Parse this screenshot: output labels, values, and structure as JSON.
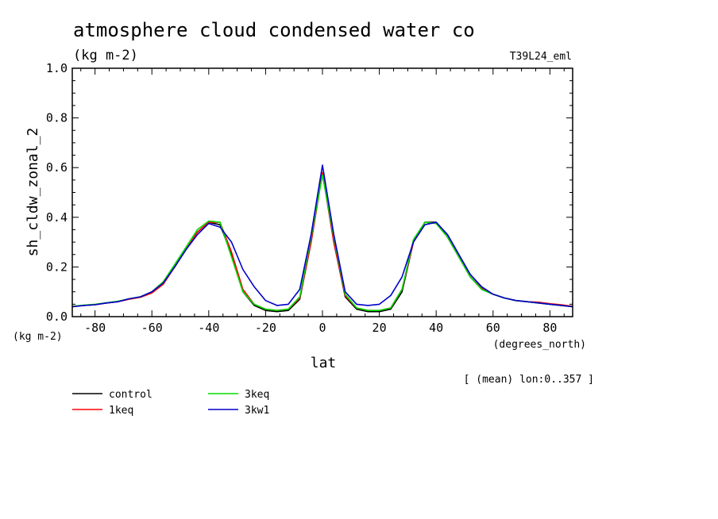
{
  "chart_data": {
    "type": "line",
    "title": "atmosphere cloud condensed water co",
    "units": "(kg m-2)",
    "dataset_label": "T39L24_eml",
    "ylabel": "sh_cldw_zonal_2",
    "y_units": "(kg m-2)",
    "xlabel": "lat",
    "x_units": "(degrees_north)",
    "subset_note": "[ (mean) lon:0..357 ]",
    "xlim": [
      -88,
      88
    ],
    "ylim": [
      0,
      1
    ],
    "x_ticks": [
      -80,
      -60,
      -40,
      -20,
      0,
      20,
      40,
      60,
      80
    ],
    "x_tick_labels": [
      "-80",
      "-60",
      "-40",
      "-20",
      "0",
      "20",
      "40",
      "60",
      "80"
    ],
    "y_ticks": [
      0,
      0.2,
      0.4,
      0.6,
      0.8,
      1.0
    ],
    "y_tick_labels": [
      "0.0",
      "0.2",
      "0.4",
      "0.6",
      "0.8",
      "1.0"
    ],
    "x": [
      -88,
      -84,
      -80,
      -76,
      -72,
      -68,
      -64,
      -60,
      -56,
      -52,
      -48,
      -44,
      -40,
      -36,
      -32,
      -28,
      -24,
      -20,
      -16,
      -12,
      -8,
      -4,
      0,
      4,
      8,
      12,
      16,
      20,
      24,
      28,
      32,
      36,
      40,
      44,
      48,
      52,
      56,
      60,
      64,
      68,
      72,
      76,
      80,
      84,
      88
    ],
    "series": [
      {
        "name": "control",
        "color": "#000000",
        "values": [
          0.04,
          0.045,
          0.048,
          0.055,
          0.06,
          0.072,
          0.08,
          0.1,
          0.14,
          0.2,
          0.27,
          0.34,
          0.38,
          0.37,
          0.25,
          0.1,
          0.045,
          0.025,
          0.02,
          0.025,
          0.07,
          0.3,
          0.58,
          0.3,
          0.08,
          0.03,
          0.02,
          0.02,
          0.03,
          0.1,
          0.3,
          0.38,
          0.38,
          0.32,
          0.24,
          0.16,
          0.11,
          0.09,
          0.075,
          0.065,
          0.06,
          0.055,
          0.05,
          0.045,
          0.04
        ]
      },
      {
        "name": "1keq",
        "color": "#ff0000",
        "values": [
          0.04,
          0.045,
          0.048,
          0.055,
          0.06,
          0.07,
          0.078,
          0.095,
          0.13,
          0.2,
          0.27,
          0.34,
          0.38,
          0.38,
          0.26,
          0.11,
          0.05,
          0.03,
          0.025,
          0.03,
          0.075,
          0.3,
          0.58,
          0.3,
          0.085,
          0.035,
          0.025,
          0.025,
          0.035,
          0.11,
          0.3,
          0.38,
          0.375,
          0.32,
          0.24,
          0.16,
          0.115,
          0.09,
          0.075,
          0.065,
          0.06,
          0.058,
          0.052,
          0.048,
          0.042
        ]
      },
      {
        "name": "3keq",
        "color": "#00dd00",
        "values": [
          0.042,
          0.046,
          0.05,
          0.056,
          0.062,
          0.072,
          0.08,
          0.1,
          0.14,
          0.21,
          0.28,
          0.35,
          0.385,
          0.38,
          0.24,
          0.1,
          0.05,
          0.03,
          0.025,
          0.03,
          0.08,
          0.32,
          0.57,
          0.32,
          0.09,
          0.035,
          0.025,
          0.025,
          0.035,
          0.11,
          0.31,
          0.38,
          0.375,
          0.32,
          0.24,
          0.16,
          0.11,
          0.09,
          0.075,
          0.065,
          0.06,
          0.055,
          0.05,
          0.045,
          0.04
        ]
      },
      {
        "name": "3kw1",
        "color": "#0000cc",
        "values": [
          0.04,
          0.045,
          0.048,
          0.055,
          0.06,
          0.072,
          0.08,
          0.1,
          0.135,
          0.2,
          0.27,
          0.33,
          0.375,
          0.36,
          0.3,
          0.19,
          0.12,
          0.065,
          0.045,
          0.05,
          0.11,
          0.33,
          0.61,
          0.33,
          0.1,
          0.05,
          0.045,
          0.05,
          0.085,
          0.16,
          0.3,
          0.37,
          0.38,
          0.33,
          0.25,
          0.17,
          0.12,
          0.09,
          0.075,
          0.065,
          0.06,
          0.055,
          0.05,
          0.045,
          0.04
        ]
      }
    ]
  }
}
